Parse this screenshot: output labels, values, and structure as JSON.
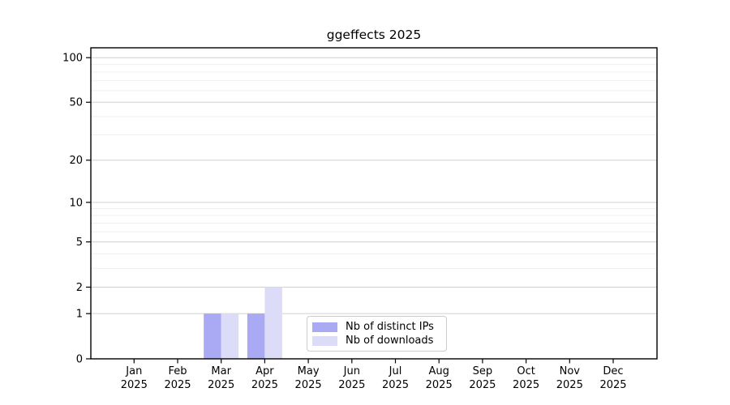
{
  "page": {
    "background": "#ffffff"
  },
  "chart_data": {
    "type": "bar",
    "title": "ggeffects 2025",
    "categories": [
      "Jan",
      "Feb",
      "Mar",
      "Apr",
      "May",
      "Jun",
      "Jul",
      "Aug",
      "Sep",
      "Oct",
      "Nov",
      "Dec"
    ],
    "year_label": "2025",
    "series": [
      {
        "name": "Nb of distinct IPs",
        "color": "#a9a9f4",
        "values": [
          0,
          0,
          1,
          1,
          0,
          0,
          0,
          0,
          0,
          0,
          0,
          0
        ]
      },
      {
        "name": "Nb of downloads",
        "color": "#dcdcf8",
        "values": [
          0,
          0,
          1,
          2,
          0,
          0,
          0,
          0,
          0,
          0,
          0,
          0
        ]
      }
    ],
    "xlabel": "",
    "ylabel": "",
    "yscale": "log1p",
    "ylim": [
      0,
      100
    ],
    "yticks": [
      0,
      1,
      2,
      5,
      10,
      20,
      50,
      100
    ],
    "minor_gridlines": [
      3,
      4,
      6,
      7,
      8,
      9,
      30,
      40,
      60,
      70,
      80,
      90
    ],
    "grid": "horizontal",
    "legend_position": "inside-bottom-center",
    "colors": {
      "axis": "#000000",
      "major_grid": "#d0d0d0",
      "minor_grid": "#efefef",
      "legend_border": "#cccccc",
      "text": "#000000"
    }
  }
}
